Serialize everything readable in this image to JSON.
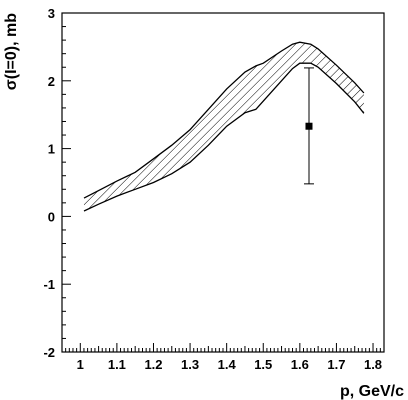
{
  "chart_data": {
    "type": "area",
    "title": "",
    "xlabel": "p, GeV/c",
    "ylabel": "σ(I=0), mb",
    "xlim": [
      0.95,
      1.83
    ],
    "ylim": [
      -2,
      3
    ],
    "x_ticks": [
      "1",
      "1.1",
      "1.2",
      "1.3",
      "1.4",
      "1.5",
      "1.6",
      "1.7",
      "1.8"
    ],
    "y_ticks": [
      "-2",
      "-1",
      "0",
      "1",
      "2",
      "3"
    ],
    "grid": false,
    "band": {
      "style": "hatched",
      "x": [
        1.01,
        1.05,
        1.1,
        1.15,
        1.2,
        1.25,
        1.3,
        1.35,
        1.4,
        1.45,
        1.48,
        1.5,
        1.55,
        1.58,
        1.6,
        1.63,
        1.65,
        1.7,
        1.75,
        1.775
      ],
      "upper": [
        0.27,
        0.38,
        0.52,
        0.65,
        0.85,
        1.05,
        1.28,
        1.58,
        1.88,
        2.13,
        2.22,
        2.26,
        2.44,
        2.54,
        2.57,
        2.54,
        2.47,
        2.23,
        1.97,
        1.82
      ],
      "lower": [
        0.08,
        0.18,
        0.3,
        0.4,
        0.5,
        0.63,
        0.8,
        1.05,
        1.33,
        1.53,
        1.58,
        1.7,
        2.0,
        2.18,
        2.26,
        2.26,
        2.2,
        1.96,
        1.69,
        1.52
      ]
    },
    "points": [
      {
        "x": 1.625,
        "y": 1.33,
        "y_low": 0.48,
        "y_high": 2.19
      }
    ]
  }
}
